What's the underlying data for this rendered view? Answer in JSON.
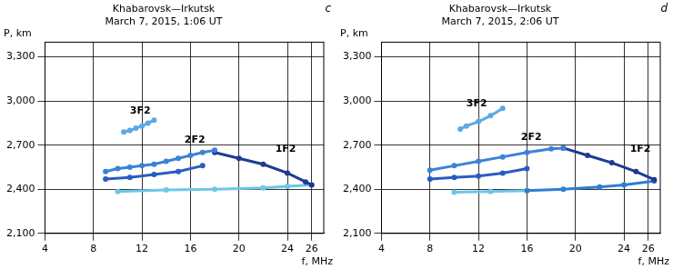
{
  "chart_data": [
    {
      "type": "scatter",
      "title": "Khabarovsk—Irkutsk",
      "subtitle": "March 7, 2015, 1:06 UT",
      "panel": "c",
      "x_label": "f, MHz",
      "y_label": "P, km",
      "xlim": [
        4,
        27
      ],
      "xticks": [
        4,
        8,
        12,
        16,
        20,
        24,
        26
      ],
      "ylim": [
        2100,
        3400
      ],
      "yticks": [
        2100,
        2400,
        2700,
        3000,
        3300
      ],
      "grid": true,
      "series": [
        {
          "color": "#5aa9e6",
          "points": [
            [
              10.5,
              2790
            ],
            [
              11,
              2800
            ],
            [
              11.5,
              2815
            ],
            [
              12,
              2830
            ],
            [
              12.5,
              2850
            ],
            [
              13,
              2870
            ]
          ]
        },
        {
          "color": "#3b82d6",
          "points": [
            [
              9,
              2520
            ],
            [
              10,
              2540
            ],
            [
              11,
              2550
            ],
            [
              12,
              2560
            ],
            [
              13,
              2570
            ],
            [
              14,
              2590
            ],
            [
              15,
              2610
            ],
            [
              16,
              2630
            ],
            [
              17,
              2650
            ],
            [
              18,
              2665
            ]
          ]
        },
        {
          "color": "#2a5cc0",
          "points": [
            [
              9,
              2470
            ],
            [
              11,
              2480
            ],
            [
              13,
              2500
            ],
            [
              15,
              2520
            ],
            [
              17,
              2560
            ]
          ]
        },
        {
          "color": "#1f3a93",
          "points": [
            [
              18,
              2650
            ],
            [
              20,
              2610
            ],
            [
              22,
              2570
            ],
            [
              24,
              2510
            ],
            [
              25.5,
              2450
            ],
            [
              26,
              2430
            ]
          ]
        },
        {
          "color": "#6ec6e8",
          "points": [
            [
              10,
              2385
            ],
            [
              14,
              2395
            ],
            [
              18,
              2400
            ],
            [
              22,
              2410
            ],
            [
              24,
              2420
            ],
            [
              26,
              2430
            ]
          ]
        }
      ],
      "annotations": [
        {
          "text": "3F2",
          "x": 11,
          "y": 2900
        },
        {
          "text": "2F2",
          "x": 15.5,
          "y": 2700
        },
        {
          "text": "1F2",
          "x": 23,
          "y": 2640
        }
      ]
    },
    {
      "type": "scatter",
      "title": "Khabarovsk—Irkutsk",
      "subtitle": "March 7, 2015, 2:06 UT",
      "panel": "d",
      "x_label": "f, MHz",
      "y_label": "P, km",
      "xlim": [
        4,
        27
      ],
      "xticks": [
        4,
        8,
        12,
        16,
        20,
        24,
        26
      ],
      "ylim": [
        2100,
        3400
      ],
      "yticks": [
        2100,
        2400,
        2700,
        3000,
        3300
      ],
      "grid": true,
      "series": [
        {
          "color": "#5aa9e6",
          "points": [
            [
              10.5,
              2810
            ],
            [
              11,
              2830
            ],
            [
              12,
              2860
            ],
            [
              13,
              2900
            ],
            [
              14,
              2950
            ]
          ]
        },
        {
          "color": "#3b82d6",
          "points": [
            [
              8,
              2530
            ],
            [
              10,
              2560
            ],
            [
              12,
              2590
            ],
            [
              14,
              2620
            ],
            [
              16,
              2650
            ],
            [
              18,
              2675
            ],
            [
              19,
              2680
            ]
          ]
        },
        {
          "color": "#2a5cc0",
          "points": [
            [
              8,
              2470
            ],
            [
              10,
              2480
            ],
            [
              12,
              2490
            ],
            [
              14,
              2510
            ],
            [
              16,
              2540
            ]
          ]
        },
        {
          "color": "#1f3a93",
          "points": [
            [
              19,
              2680
            ],
            [
              21,
              2630
            ],
            [
              23,
              2580
            ],
            [
              25,
              2520
            ],
            [
              26.5,
              2465
            ]
          ]
        },
        {
          "color": "#2e7fd0",
          "points": [
            [
              16,
              2390
            ],
            [
              19,
              2400
            ],
            [
              22,
              2415
            ],
            [
              24,
              2430
            ],
            [
              26.5,
              2455
            ]
          ]
        },
        {
          "color": "#6ec6e8",
          "points": [
            [
              10,
              2380
            ],
            [
              13,
              2385
            ],
            [
              16,
              2390
            ]
          ]
        }
      ],
      "annotations": [
        {
          "text": "3F2",
          "x": 11,
          "y": 2950
        },
        {
          "text": "2F2",
          "x": 15.5,
          "y": 2720
        },
        {
          "text": "1F2",
          "x": 24.5,
          "y": 2640
        }
      ]
    }
  ]
}
